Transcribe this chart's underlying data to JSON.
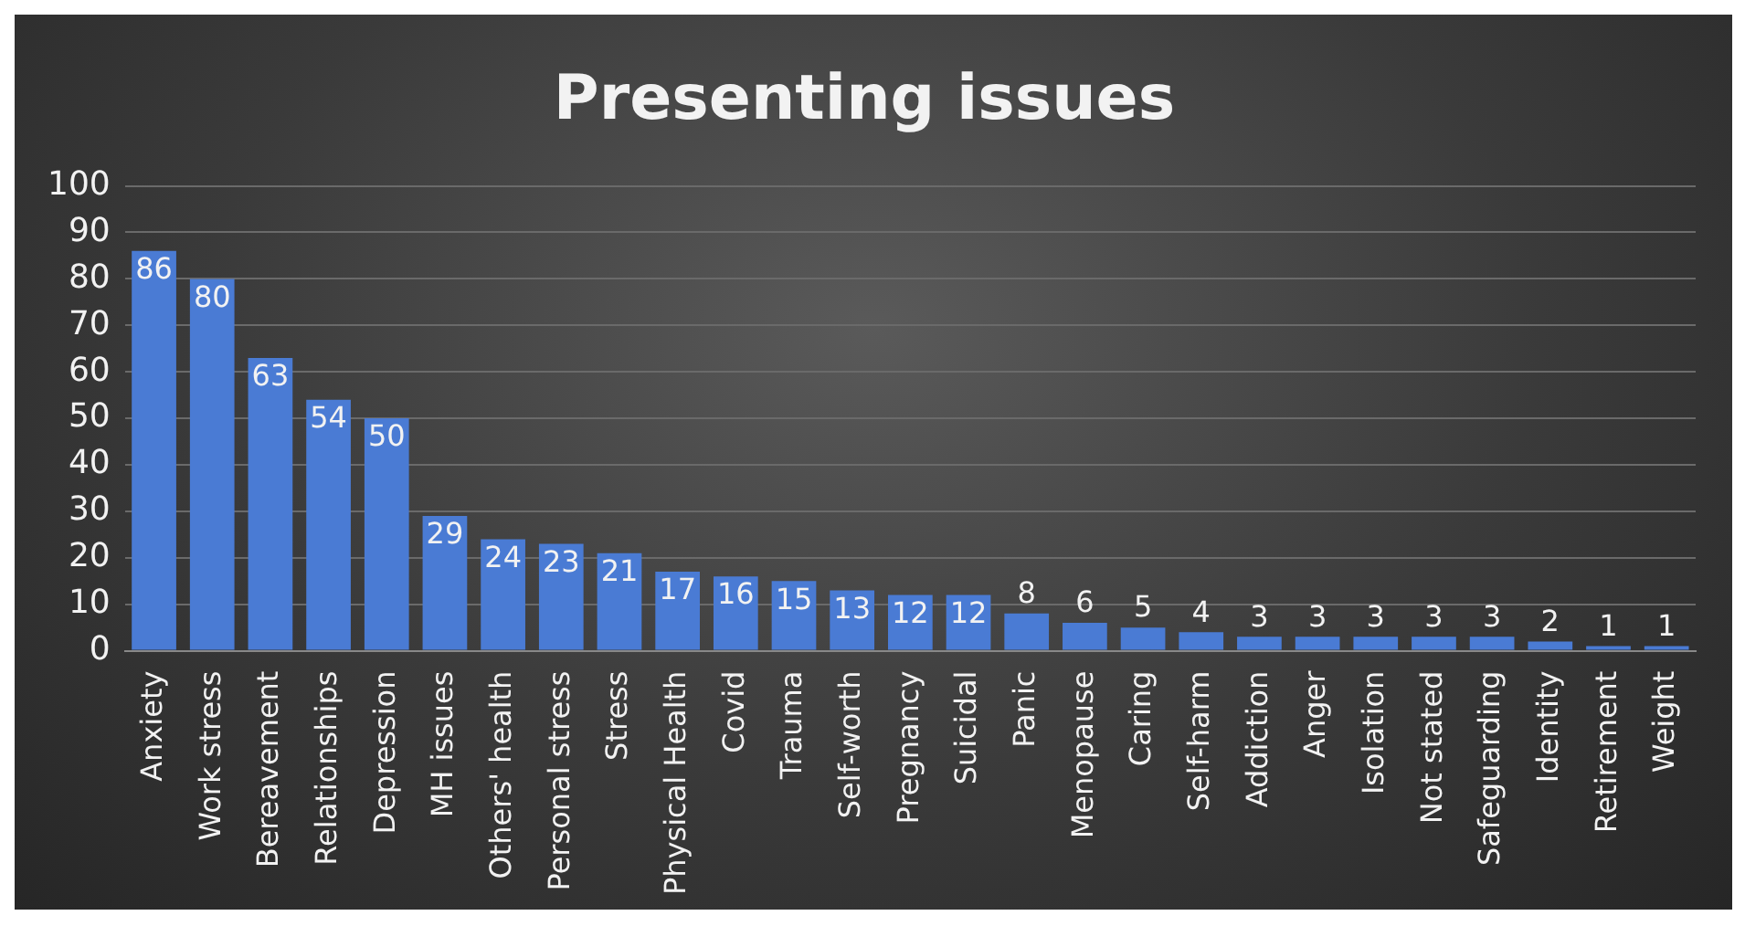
{
  "chart_data": {
    "type": "bar",
    "title": "Presenting issues",
    "categories": [
      "Anxiety",
      "Work stress",
      "Bereavement",
      "Relationships",
      "Depression",
      "MH issues",
      "Others' health",
      "Personal stress",
      "Stress",
      "Physical Health",
      "Covid",
      "Trauma",
      "Self-worth",
      "Pregnancy",
      "Suicidal",
      "Panic",
      "Menopause",
      "Caring",
      "Self-harm",
      "Addiction",
      "Anger",
      "Isolation",
      "Not stated",
      "Safeguarding",
      "Identity",
      "Retirement",
      "Weight"
    ],
    "values": [
      86,
      80,
      63,
      54,
      50,
      29,
      24,
      23,
      21,
      17,
      16,
      15,
      13,
      12,
      12,
      8,
      6,
      5,
      4,
      3,
      3,
      3,
      3,
      3,
      2,
      1,
      1
    ],
    "color": "#4a7bd4",
    "ylim": [
      0,
      100
    ],
    "yticks": [
      0,
      10,
      20,
      30,
      40,
      50,
      60,
      70,
      80,
      90,
      100
    ],
    "grid": "y",
    "data_labels": true,
    "legend": false
  }
}
